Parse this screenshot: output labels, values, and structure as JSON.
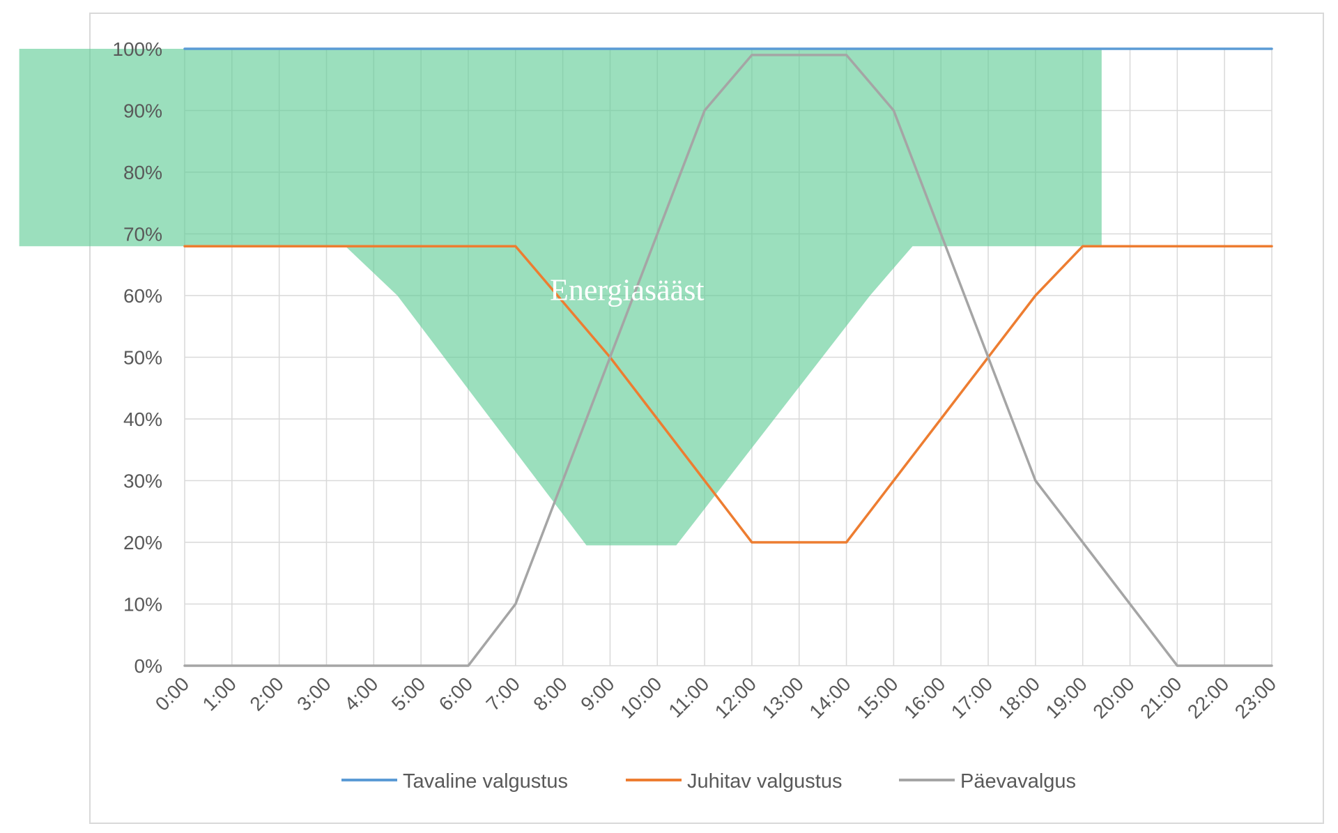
{
  "chart_data": {
    "type": "line",
    "title": "",
    "xlabel": "",
    "ylabel": "",
    "x": [
      "0:00",
      "1:00",
      "2:00",
      "3:00",
      "4:00",
      "5:00",
      "6:00",
      "7:00",
      "8:00",
      "9:00",
      "10:00",
      "11:00",
      "12:00",
      "13:00",
      "14:00",
      "15:00",
      "16:00",
      "17:00",
      "18:00",
      "19:00",
      "20:00",
      "21:00",
      "22:00",
      "23:00"
    ],
    "ylim": [
      0,
      100
    ],
    "yticks": [
      "0%",
      "10%",
      "20%",
      "30%",
      "40%",
      "50%",
      "60%",
      "70%",
      "80%",
      "90%",
      "100%"
    ],
    "grid": true,
    "legend_position": "bottom",
    "series": [
      {
        "name": "Tavaline valgustus",
        "color": "#5b9bd5",
        "values": [
          100,
          100,
          100,
          100,
          100,
          100,
          100,
          100,
          100,
          100,
          100,
          100,
          100,
          100,
          100,
          100,
          100,
          100,
          100,
          100,
          100,
          100,
          100,
          100
        ]
      },
      {
        "name": "Juhitav valgustus",
        "color": "#ed7d31",
        "values": [
          68,
          68,
          68,
          68,
          68,
          68,
          68,
          68,
          59,
          50,
          40,
          30,
          20,
          20,
          20,
          30,
          40,
          50,
          60,
          68,
          68,
          68,
          68,
          68
        ]
      },
      {
        "name": "Päevavalgus",
        "color": "#a5a5a5",
        "values": [
          0,
          0,
          0,
          0,
          0,
          0,
          0,
          10,
          30,
          50,
          70,
          90,
          99,
          99,
          99,
          90,
          70,
          50,
          30,
          20,
          10,
          0,
          0,
          0
        ]
      }
    ],
    "annotation": {
      "text": "Energiasääst",
      "color": "#5dcc94",
      "x": 9.2,
      "y": 61.5,
      "region_start": -3.5,
      "region_end": 19.4,
      "region_top": 100,
      "region_bottom": [
        {
          "x": 3.4,
          "y": 68
        },
        {
          "x": 4.5,
          "y": 60
        },
        {
          "x": 8.5,
          "y": 19.5
        },
        {
          "x": 10.4,
          "y": 19.5
        },
        {
          "x": 14.5,
          "y": 60
        },
        {
          "x": 15.4,
          "y": 68
        },
        {
          "x": 19.4,
          "y": 68
        }
      ]
    }
  }
}
